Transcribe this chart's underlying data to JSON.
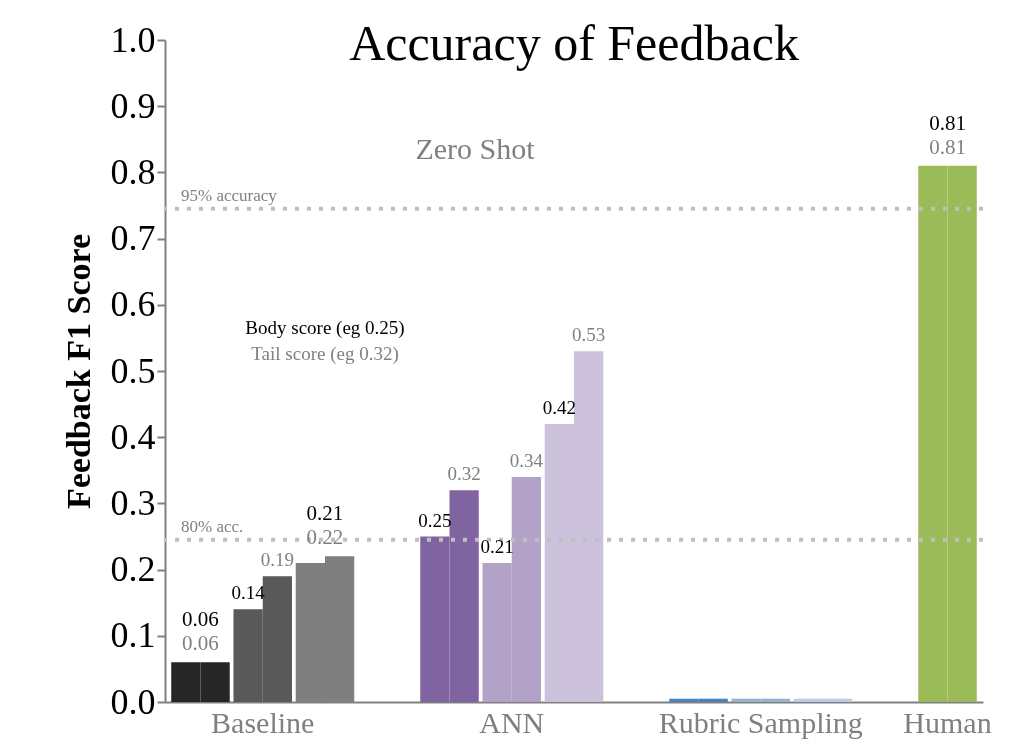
{
  "chart_data": {
    "type": "bar",
    "title": "Accuracy of Feedback",
    "ylabel": "Feedback F1 Score",
    "categories": [
      null,
      "Baseline",
      null,
      null,
      null,
      "ANN",
      null,
      null,
      null,
      "Rubric Sampling",
      null,
      null,
      "Human"
    ],
    "series": [
      {
        "colors": [
          "#262626",
          "#595959",
          "#7f7f7f",
          null,
          "#8064a2",
          "#b3a2c7",
          "#ccc1da",
          null,
          "#4f81bd",
          "#95b3d7",
          "#b9cde5",
          null,
          "#9bbb59"
        ],
        "values": [
          0.06,
          0.14,
          0.21,
          null,
          0.25,
          0.21,
          0.42,
          null,
          0.005,
          0.005,
          0.005,
          null,
          0.81
        ],
        "value_labels": [
          "0.06",
          "0.14",
          "0.21",
          null,
          "0.25",
          "0.21",
          "0.42",
          null,
          null,
          null,
          null,
          null,
          "0.81"
        ]
      },
      {
        "colors": [
          "#262626",
          "#595959",
          "#7f7f7f",
          null,
          "#8064a2",
          "#b3a2c7",
          "#ccc1da",
          null,
          "#4f81bd",
          "#95b3d7",
          "#b9cde5",
          null,
          "#9bbb59"
        ],
        "values": [
          0.06,
          0.19,
          0.22,
          null,
          0.32,
          0.34,
          0.53,
          null,
          0.005,
          0.005,
          0.005,
          null,
          0.81
        ],
        "value_labels": [
          "0.06",
          "0.19",
          "0.22",
          null,
          "0.32",
          "0.34",
          "0.53",
          null,
          null,
          null,
          null,
          null,
          "0.81"
        ]
      }
    ],
    "ylim": [
      0,
      1
    ],
    "yticks": [
      {
        "value": 0,
        "label": "0.0"
      },
      0.1,
      0.2,
      0.3,
      0.4,
      0.5,
      0.6,
      0.7,
      0.8,
      0.9,
      {
        "value": 1,
        "label": "1.0"
      }
    ],
    "ref_lines": [
      {
        "axis": "y",
        "value": 0.745,
        "label": "95% accuracy",
        "color": "#bfbfbf",
        "line_style": "dotted"
      },
      {
        "axis": "y",
        "value": 0.245,
        "label": "80% acc.",
        "color": "#bfbfbf",
        "line_style": "dotted"
      }
    ],
    "annotations": [
      "Zero Shot",
      "Body score (eg 0.25)",
      "Tail score (eg 0.32)"
    ],
    "grid": false
  }
}
